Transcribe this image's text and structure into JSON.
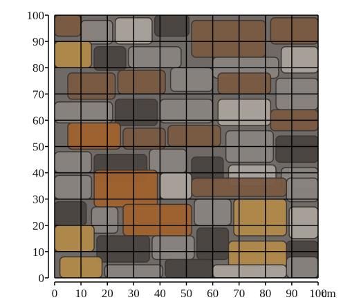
{
  "figure": {
    "description_kind": "photograph of stone wall overlaid with measurement grid",
    "x_axis": {
      "ticks": [
        "0",
        "10",
        "20",
        "30",
        "40",
        "50",
        "60",
        "70",
        "80",
        "90",
        "100"
      ],
      "unit_label": "cm"
    },
    "y_axis": {
      "ticks": [
        "0",
        "10",
        "20",
        "30",
        "40",
        "50",
        "60",
        "70",
        "80",
        "90",
        "100"
      ]
    },
    "grid": {
      "divisions": 10,
      "line_color": "#000000"
    },
    "colors": {
      "mortar": "#6f6a66",
      "dark_stone": "#4b4542",
      "grey_stone": "#8a8480",
      "brown_stone": "#7a5a42",
      "rust_stone": "#a0622e",
      "ochre_stone": "#b28a4a",
      "pale_stone": "#a9a39b"
    }
  }
}
